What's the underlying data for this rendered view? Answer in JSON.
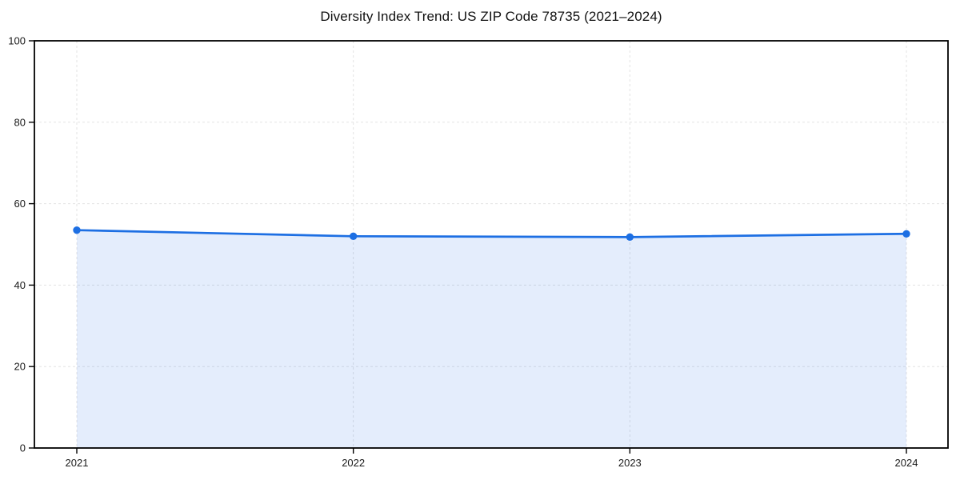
{
  "figure": {
    "background": "#ffffff"
  },
  "chart_data": {
    "type": "area",
    "title": "Diversity Index Trend: US ZIP Code 78735 (2021–2024)",
    "x": [
      2021,
      2022,
      2023,
      2024
    ],
    "x_tick_labels": [
      "2021",
      "2022",
      "2023",
      "2024"
    ],
    "series": [
      {
        "name": "Diversity Index",
        "values": [
          53.5,
          52.0,
          51.8,
          52.6
        ]
      }
    ],
    "xlabel": "",
    "ylabel": "",
    "ylim": [
      0,
      100
    ],
    "yticks": [
      0,
      20,
      40,
      60,
      80,
      100
    ],
    "grid": {
      "visible": true,
      "style": "dashed",
      "color": "#e3e3e3"
    },
    "legend": {
      "visible": false
    },
    "styles": {
      "line_color": "#1d6fe3",
      "marker": "circle",
      "marker_color": "#1d6fe3",
      "fill_color": "rgba(29,111,227,0.12)",
      "spine_color": "#000000"
    }
  }
}
